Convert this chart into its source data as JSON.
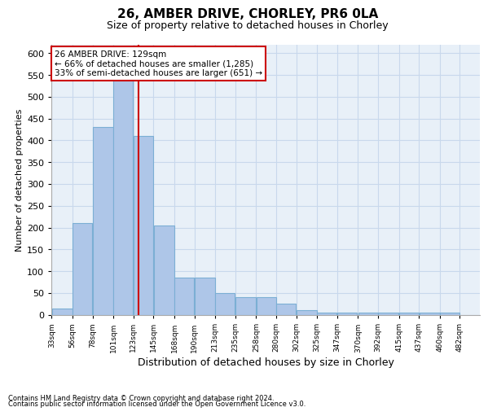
{
  "title1": "26, AMBER DRIVE, CHORLEY, PR6 0LA",
  "title2": "Size of property relative to detached houses in Chorley",
  "xlabel": "Distribution of detached houses by size in Chorley",
  "ylabel": "Number of detached properties",
  "footnote1": "Contains HM Land Registry data © Crown copyright and database right 2024.",
  "footnote2": "Contains public sector information licensed under the Open Government Licence v3.0.",
  "bar_left_edges": [
    33,
    56,
    78,
    101,
    123,
    145,
    168,
    190,
    213,
    235,
    258,
    280,
    302,
    325,
    347,
    370,
    392,
    415,
    437,
    460
  ],
  "bar_widths": [
    23,
    22,
    23,
    22,
    22,
    23,
    22,
    23,
    22,
    23,
    22,
    22,
    23,
    22,
    22,
    22,
    23,
    22,
    23,
    22
  ],
  "bar_heights": [
    15,
    210,
    430,
    540,
    410,
    205,
    85,
    85,
    50,
    40,
    40,
    25,
    10,
    5,
    5,
    5,
    5,
    5,
    5,
    5
  ],
  "bar_color": "#aec6e8",
  "bar_edgecolor": "#7bafd4",
  "grid_color": "#c8d8ec",
  "bg_color": "#e8f0f8",
  "vline_x": 129,
  "vline_color": "#cc0000",
  "annotation_text": "26 AMBER DRIVE: 129sqm\n← 66% of detached houses are smaller (1,285)\n33% of semi-detached houses are larger (651) →",
  "annotation_box_edgecolor": "#cc0000",
  "annotation_box_facecolor": "#ffffff",
  "ylim": [
    0,
    620
  ],
  "yticks": [
    0,
    50,
    100,
    150,
    200,
    250,
    300,
    350,
    400,
    450,
    500,
    550,
    600
  ],
  "xticklabels": [
    "33sqm",
    "56sqm",
    "78sqm",
    "101sqm",
    "123sqm",
    "145sqm",
    "168sqm",
    "190sqm",
    "213sqm",
    "235sqm",
    "258sqm",
    "280sqm",
    "302sqm",
    "325sqm",
    "347sqm",
    "370sqm",
    "392sqm",
    "415sqm",
    "437sqm",
    "460sqm",
    "482sqm"
  ],
  "title_fontsize": 11,
  "subtitle_fontsize": 9,
  "ylabel_fontsize": 8,
  "xlabel_fontsize": 9
}
